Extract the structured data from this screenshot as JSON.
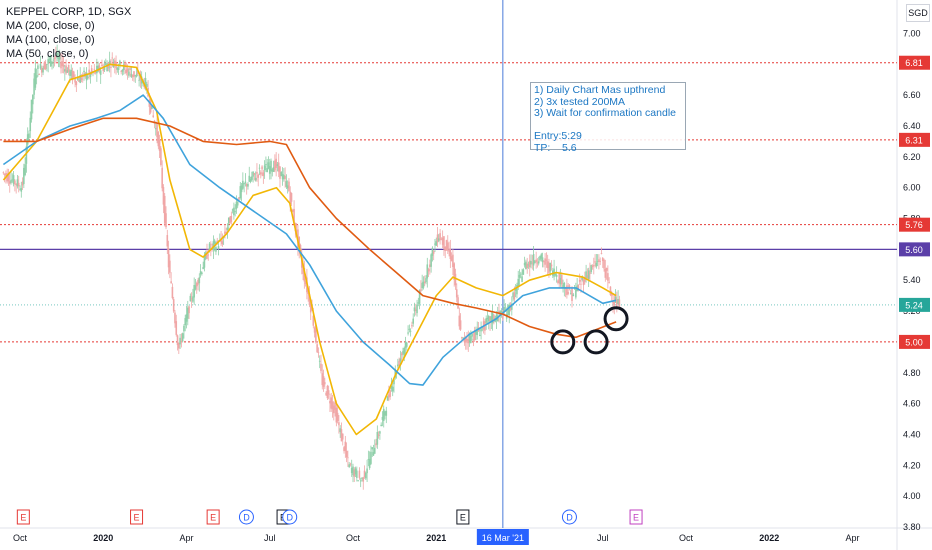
{
  "chart_data": {
    "type": "line",
    "title": "KEPPEL CORP, 1D, SGX",
    "legend": [
      "MA (200, close, 0)",
      "MA (100, close, 0)",
      "MA (50, close, 0)"
    ],
    "currency": "SGD",
    "ylim": [
      3.8,
      7.1
    ],
    "y_ticks": [
      "7.00",
      "6.80",
      "6.60",
      "6.40",
      "6.20",
      "6.00",
      "5.80",
      "5.60",
      "5.40",
      "5.20",
      "5.00",
      "4.80",
      "4.60",
      "4.40",
      "4.20",
      "4.00",
      "3.80"
    ],
    "x_ticks": [
      "Oct",
      "2020",
      "Apr",
      "Jul",
      "Oct",
      "2021",
      "16 Mar '21",
      "Apr",
      "Jul",
      "Oct",
      "2022",
      "Apr"
    ],
    "x_tick_times": [
      2019.75,
      2020.0,
      2020.25,
      2020.5,
      2020.75,
      2021.0,
      2021.2,
      2021.25,
      2021.5,
      2021.75,
      2022.0,
      2022.25
    ],
    "crosshair_time": 2021.2,
    "horizontal_levels": [
      {
        "value": 6.81,
        "label": "6.81",
        "color": "#e53935",
        "style": "dotted"
      },
      {
        "value": 6.31,
        "label": "6.31",
        "color": "#e53935",
        "style": "dotted"
      },
      {
        "value": 5.76,
        "label": "5.76",
        "color": "#e53935",
        "style": "dotted"
      },
      {
        "value": 5.6,
        "label": "5.60",
        "color": "#5b3fa8",
        "style": "solid"
      },
      {
        "value": 5.0,
        "label": "5.00",
        "color": "#e53935",
        "style": "dotted"
      }
    ],
    "last_price": {
      "value": 5.24,
      "label": "5.24",
      "color": "#26a69a"
    },
    "price_path": [
      [
        2019.7,
        6.1
      ],
      [
        2019.76,
        6.0
      ],
      [
        2019.8,
        6.75
      ],
      [
        2019.86,
        6.85
      ],
      [
        2019.92,
        6.7
      ],
      [
        2019.98,
        6.75
      ],
      [
        2020.03,
        6.82
      ],
      [
        2020.09,
        6.74
      ],
      [
        2020.13,
        6.68
      ],
      [
        2020.17,
        6.3
      ],
      [
        2020.2,
        5.5
      ],
      [
        2020.23,
        4.95
      ],
      [
        2020.27,
        5.3
      ],
      [
        2020.32,
        5.6
      ],
      [
        2020.36,
        5.65
      ],
      [
        2020.42,
        6.0
      ],
      [
        2020.47,
        6.1
      ],
      [
        2020.52,
        6.15
      ],
      [
        2020.56,
        6.0
      ],
      [
        2020.6,
        5.5
      ],
      [
        2020.63,
        5.2
      ],
      [
        2020.66,
        4.75
      ],
      [
        2020.7,
        4.55
      ],
      [
        2020.74,
        4.2
      ],
      [
        2020.78,
        4.1
      ],
      [
        2020.83,
        4.4
      ],
      [
        2020.88,
        4.8
      ],
      [
        2020.92,
        5.05
      ],
      [
        2020.96,
        5.35
      ],
      [
        2021.01,
        5.7
      ],
      [
        2021.05,
        5.55
      ],
      [
        2021.08,
        5.0
      ],
      [
        2021.12,
        5.05
      ],
      [
        2021.17,
        5.15
      ],
      [
        2021.22,
        5.2
      ],
      [
        2021.27,
        5.5
      ],
      [
        2021.31,
        5.55
      ],
      [
        2021.36,
        5.45
      ],
      [
        2021.41,
        5.3
      ],
      [
        2021.46,
        5.45
      ],
      [
        2021.5,
        5.55
      ],
      [
        2021.53,
        5.3
      ],
      [
        2021.55,
        5.24
      ]
    ],
    "series": [
      {
        "name": "MA (50, close, 0)",
        "color": "#f2b705",
        "points": [
          [
            2019.7,
            6.05
          ],
          [
            2019.8,
            6.3
          ],
          [
            2019.9,
            6.7
          ],
          [
            2019.96,
            6.74
          ],
          [
            2020.02,
            6.8
          ],
          [
            2020.1,
            6.78
          ],
          [
            2020.16,
            6.5
          ],
          [
            2020.2,
            6.05
          ],
          [
            2020.26,
            5.6
          ],
          [
            2020.3,
            5.55
          ],
          [
            2020.37,
            5.7
          ],
          [
            2020.45,
            5.95
          ],
          [
            2020.52,
            6.0
          ],
          [
            2020.56,
            5.9
          ],
          [
            2020.6,
            5.5
          ],
          [
            2020.65,
            5.0
          ],
          [
            2020.7,
            4.6
          ],
          [
            2020.76,
            4.4
          ],
          [
            2020.82,
            4.5
          ],
          [
            2020.88,
            4.8
          ],
          [
            2020.94,
            5.05
          ],
          [
            2021.0,
            5.3
          ],
          [
            2021.05,
            5.42
          ],
          [
            2021.12,
            5.35
          ],
          [
            2021.2,
            5.3
          ],
          [
            2021.28,
            5.4
          ],
          [
            2021.36,
            5.45
          ],
          [
            2021.44,
            5.42
          ],
          [
            2021.5,
            5.35
          ],
          [
            2021.54,
            5.3
          ]
        ]
      },
      {
        "name": "MA (100, close, 0)",
        "color": "#3fa3dc",
        "points": [
          [
            2019.7,
            6.15
          ],
          [
            2019.8,
            6.3
          ],
          [
            2019.9,
            6.4
          ],
          [
            2019.98,
            6.45
          ],
          [
            2020.05,
            6.5
          ],
          [
            2020.12,
            6.6
          ],
          [
            2020.18,
            6.45
          ],
          [
            2020.26,
            6.15
          ],
          [
            2020.35,
            6.0
          ],
          [
            2020.45,
            5.85
          ],
          [
            2020.55,
            5.7
          ],
          [
            2020.62,
            5.5
          ],
          [
            2020.7,
            5.2
          ],
          [
            2020.78,
            5.0
          ],
          [
            2020.86,
            4.85
          ],
          [
            2020.92,
            4.73
          ],
          [
            2020.96,
            4.72
          ],
          [
            2021.02,
            4.9
          ],
          [
            2021.1,
            5.05
          ],
          [
            2021.18,
            5.15
          ],
          [
            2021.26,
            5.3
          ],
          [
            2021.34,
            5.35
          ],
          [
            2021.42,
            5.35
          ],
          [
            2021.5,
            5.25
          ],
          [
            2021.54,
            5.27
          ]
        ]
      },
      {
        "name": "MA (200, close, 0)",
        "color": "#e05b12",
        "points": [
          [
            2019.7,
            6.3
          ],
          [
            2019.8,
            6.3
          ],
          [
            2019.9,
            6.38
          ],
          [
            2020.0,
            6.45
          ],
          [
            2020.1,
            6.45
          ],
          [
            2020.2,
            6.4
          ],
          [
            2020.3,
            6.3
          ],
          [
            2020.4,
            6.28
          ],
          [
            2020.5,
            6.3
          ],
          [
            2020.55,
            6.28
          ],
          [
            2020.62,
            6.0
          ],
          [
            2020.7,
            5.8
          ],
          [
            2020.8,
            5.6
          ],
          [
            2020.88,
            5.45
          ],
          [
            2020.96,
            5.3
          ],
          [
            2021.05,
            5.25
          ],
          [
            2021.12,
            5.22
          ],
          [
            2021.2,
            5.18
          ],
          [
            2021.28,
            5.1
          ],
          [
            2021.36,
            5.05
          ],
          [
            2021.42,
            5.03
          ],
          [
            2021.48,
            5.08
          ],
          [
            2021.54,
            5.13
          ]
        ]
      }
    ],
    "circles": [
      [
        2021.38,
        5.0
      ],
      [
        2021.48,
        5.0
      ],
      [
        2021.54,
        5.15
      ]
    ],
    "events": [
      {
        "t": 2019.76,
        "label": "E",
        "kind": "earnings",
        "color": "#e53935"
      },
      {
        "t": 2020.1,
        "label": "E",
        "kind": "earnings",
        "color": "#e53935"
      },
      {
        "t": 2020.33,
        "label": "E",
        "kind": "earnings",
        "color": "#e53935"
      },
      {
        "t": 2020.43,
        "label": "D",
        "kind": "dividend",
        "color": "#2962ff"
      },
      {
        "t": 2020.54,
        "label": "E",
        "kind": "earnings",
        "color": "#131722"
      },
      {
        "t": 2020.56,
        "label": "D",
        "kind": "dividend",
        "color": "#2962ff"
      },
      {
        "t": 2021.08,
        "label": "E",
        "kind": "earnings",
        "color": "#131722"
      },
      {
        "t": 2021.4,
        "label": "D",
        "kind": "dividend",
        "color": "#2962ff"
      },
      {
        "t": 2021.6,
        "label": "E",
        "kind": "earnings",
        "color": "#c040c0"
      }
    ]
  },
  "annotation": {
    "text": "1) Daily Chart Mas upthrend\n2) 3x tested 200MA\n3) Wait for confirmation candle\n\nEntry:5:29\nTP:    5.6"
  }
}
